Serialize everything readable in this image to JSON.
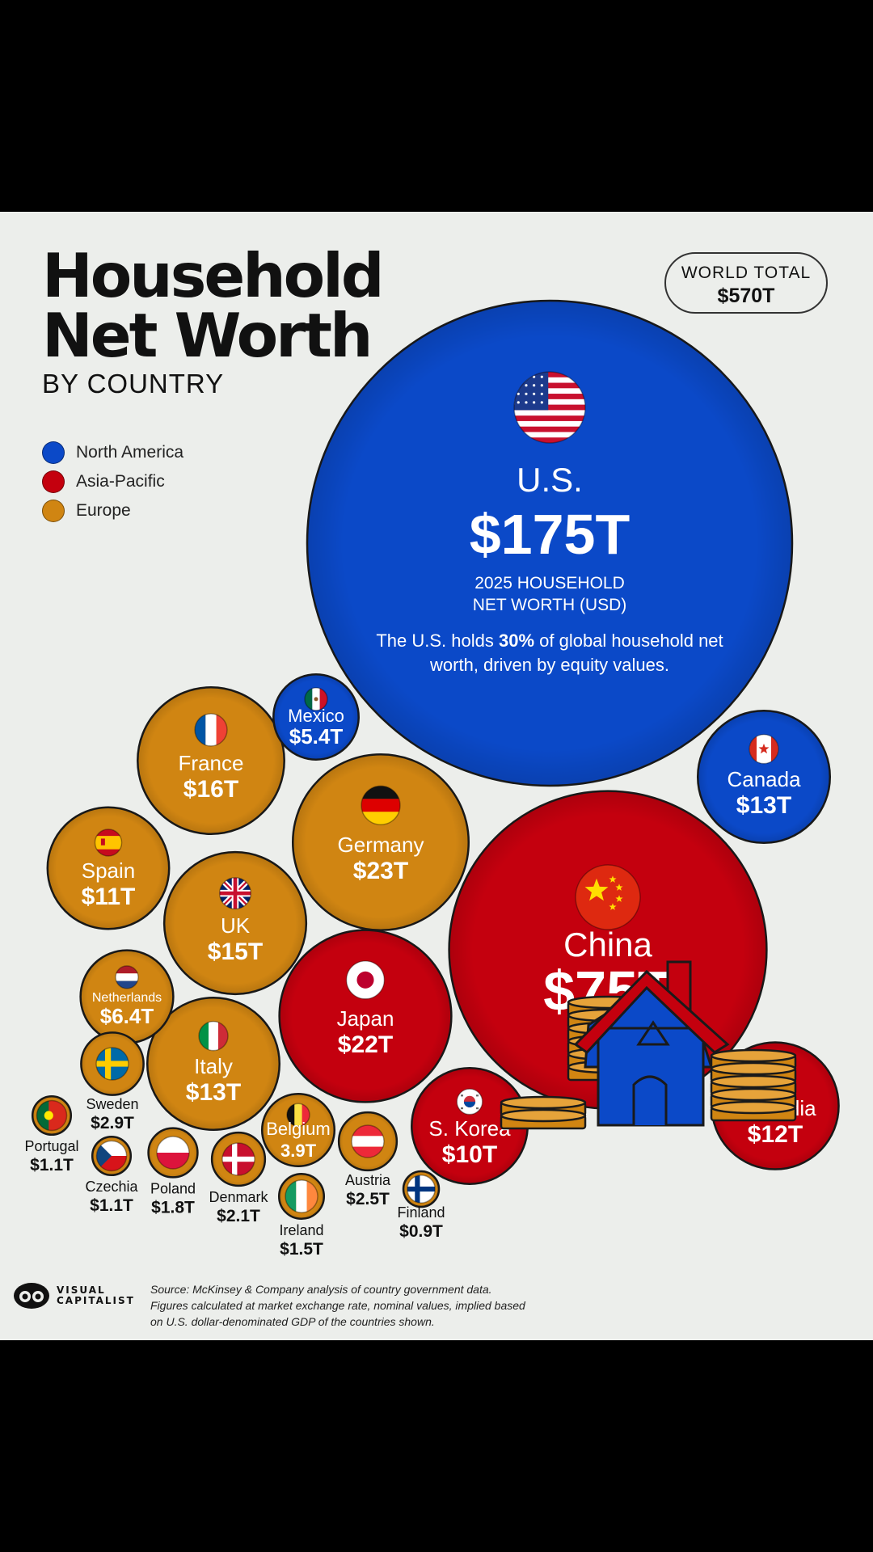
{
  "header": {
    "title_line1": "Household",
    "title_line2": "Net Worth",
    "subtitle": "BY COUNTRY"
  },
  "world_total": {
    "label": "WORLD TOTAL",
    "value": "$570T"
  },
  "legend": [
    {
      "label": "North America",
      "color": "#0b49c8"
    },
    {
      "label": "Asia-Pacific",
      "color": "#c4000e"
    },
    {
      "label": "Europe",
      "color": "#d08512"
    }
  ],
  "us_caption": "2025 HOUSEHOLD NET WORTH (USD)",
  "us_note": {
    "before": "The U.S. holds ",
    "bold": "30%",
    "after": " of global household net worth, driven by equity values."
  },
  "source": "Source: McKinsey & Company analysis of country government data. Figures calculated at market exchange rate, nominal values, implied based on U.S. dollar-denominated GDP of the countries shown.",
  "logo_text": [
    "VISUAL",
    "CAPITALIST"
  ],
  "chart_data": {
    "type": "bubble",
    "title": "Household Net Worth",
    "subtitle": "BY COUNTRY",
    "unit": "USD trillions",
    "series": [
      {
        "name": "North America",
        "color": "#0b49c8"
      },
      {
        "name": "Asia-Pacific",
        "color": "#c4000e"
      },
      {
        "name": "Europe",
        "color": "#d08512"
      }
    ],
    "points": [
      {
        "country": "U.S.",
        "value": 175,
        "label": "$175T",
        "region": "North America",
        "flag": "us-flag-icon"
      },
      {
        "country": "China",
        "value": 75,
        "label": "$75T",
        "region": "Asia-Pacific",
        "flag": "china-flag-icon"
      },
      {
        "country": "Germany",
        "value": 23,
        "label": "$23T",
        "region": "Europe",
        "flag": "germany-flag-icon"
      },
      {
        "country": "Japan",
        "value": 22,
        "label": "$22T",
        "region": "Asia-Pacific",
        "flag": "japan-flag-icon"
      },
      {
        "country": "France",
        "value": 16,
        "label": "$16T",
        "region": "Europe",
        "flag": "france-flag-icon"
      },
      {
        "country": "UK",
        "value": 15,
        "label": "$15T",
        "region": "Europe",
        "flag": "uk-flag-icon"
      },
      {
        "country": "Canada",
        "value": 13,
        "label": "$13T",
        "region": "North America",
        "flag": "canada-flag-icon"
      },
      {
        "country": "Italy",
        "value": 13,
        "label": "$13T",
        "region": "Europe",
        "flag": "italy-flag-icon"
      },
      {
        "country": "Australia",
        "value": 12,
        "label": "$12T",
        "region": "Asia-Pacific",
        "flag": "australia-flag-icon"
      },
      {
        "country": "Spain",
        "value": 11,
        "label": "$11T",
        "region": "Europe",
        "flag": "spain-flag-icon"
      },
      {
        "country": "S. Korea",
        "value": 10,
        "label": "$10T",
        "region": "Asia-Pacific",
        "flag": "south-korea-flag-icon"
      },
      {
        "country": "Netherlands",
        "value": 6.4,
        "label": "$6.4T",
        "region": "Europe",
        "flag": "netherlands-flag-icon"
      },
      {
        "country": "Mexico",
        "value": 5.4,
        "label": "$5.4T",
        "region": "North America",
        "flag": "mexico-flag-icon"
      },
      {
        "country": "Belgium",
        "value": 3.9,
        "label": "3.9T",
        "region": "Europe",
        "flag": "belgium-flag-icon"
      },
      {
        "country": "Sweden",
        "value": 2.9,
        "label": "$2.9T",
        "region": "Europe",
        "flag": "sweden-flag-icon"
      },
      {
        "country": "Austria",
        "value": 2.5,
        "label": "$2.5T",
        "region": "Europe",
        "flag": "austria-flag-icon"
      },
      {
        "country": "Denmark",
        "value": 2.1,
        "label": "$2.1T",
        "region": "Europe",
        "flag": "denmark-flag-icon"
      },
      {
        "country": "Poland",
        "value": 1.8,
        "label": "$1.8T",
        "region": "Europe",
        "flag": "poland-flag-icon"
      },
      {
        "country": "Ireland",
        "value": 1.5,
        "label": "$1.5T",
        "region": "Europe",
        "flag": "ireland-flag-icon"
      },
      {
        "country": "Portugal",
        "value": 1.1,
        "label": "$1.1T",
        "region": "Europe",
        "flag": "portugal-flag-icon"
      },
      {
        "country": "Czechia",
        "value": 1.1,
        "label": "$1.1T",
        "region": "Europe",
        "flag": "czechia-flag-icon"
      },
      {
        "country": "Finland",
        "value": 0.9,
        "label": "$0.9T",
        "region": "Europe",
        "flag": "finland-flag-icon"
      }
    ]
  }
}
